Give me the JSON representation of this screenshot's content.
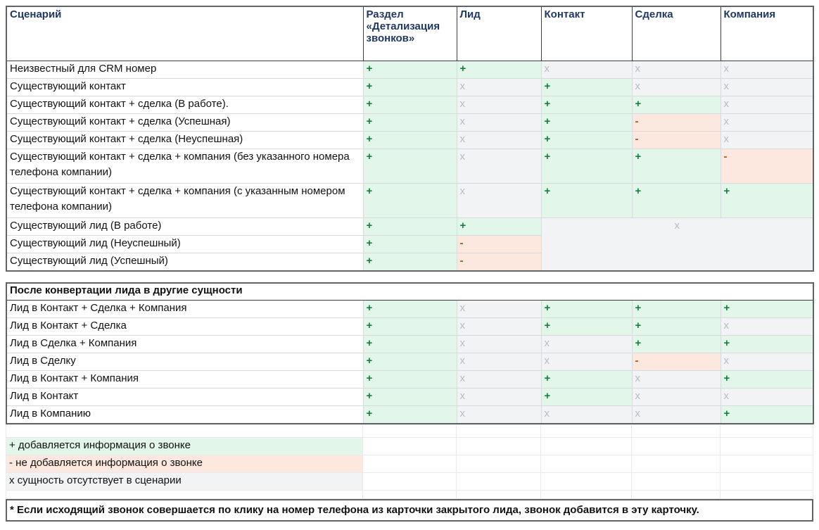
{
  "colors": {
    "green_bg": "#e2f6e9",
    "green_text": "#157f3c",
    "red_bg": "#fce8df",
    "red_text": "#b45309",
    "gray_bg": "#f1f3f4",
    "gray_text": "#b5bcc4",
    "header_text": "#1f3864",
    "grid_light": "#d7dadd",
    "grid_faint": "#e8eaed",
    "border_dark": "#5f6368"
  },
  "table1": {
    "columns": [
      "Сценарий",
      "Раздел «Детализация звонков»",
      "Лид",
      "Контакт",
      "Сделка",
      "Компания"
    ],
    "rows": [
      {
        "label": "Неизвестный для CRM номер",
        "cells": [
          "+",
          "+",
          "x",
          "x",
          "x"
        ]
      },
      {
        "label": "Существующий контакт",
        "cells": [
          "+",
          "x",
          "+",
          "x",
          "x"
        ]
      },
      {
        "label": "Существующий контакт + сделка (В работе).",
        "cells": [
          "+",
          "x",
          "+",
          "+",
          "x"
        ]
      },
      {
        "label": "Существующий контакт + сделка (Успешная)",
        "cells": [
          "+",
          "x",
          "+",
          "-",
          "x"
        ]
      },
      {
        "label": "Существующий контакт + сделка (Неуспешная)",
        "cells": [
          "+",
          "x",
          "+",
          "-",
          "x"
        ]
      },
      {
        "label": "Существующий контакт + сделка + компания (без указанного номера телефона компании)",
        "cells": [
          "+",
          "x",
          "+",
          "+",
          "-"
        ],
        "tall": true
      },
      {
        "label": "Существующий контакт + сделка + компания (с указанным номером телефона компании)",
        "cells": [
          "+",
          "x",
          "+",
          "+",
          "+"
        ],
        "tall": true
      },
      {
        "label": "Существующий лид (В работе)",
        "cells": [
          "+",
          "+"
        ],
        "merged_start": true
      },
      {
        "label": "Существующий лид (Неуспешный)",
        "cells": [
          "+",
          "-"
        ]
      },
      {
        "label": "Существующий лид (Успешный)",
        "cells": [
          "+",
          "-"
        ]
      }
    ],
    "merged_cell": {
      "symbol": "x",
      "rows": 3,
      "cols": 3
    }
  },
  "table2": {
    "section_title": "После конвертации лида в другие сущности",
    "rows": [
      {
        "label": "Лид в Контакт + Сделка + Компания",
        "cells": [
          "+",
          "x",
          "+",
          "+",
          "+"
        ]
      },
      {
        "label": "Лид в Контакт + Сделка",
        "cells": [
          "+",
          "x",
          "+",
          "+",
          "x"
        ]
      },
      {
        "label": "Лид в Сделка + Компания",
        "cells": [
          "+",
          "x",
          "x",
          "+",
          "+"
        ]
      },
      {
        "label": "Лид в Сделку",
        "cells": [
          "+",
          "x",
          "x",
          "-",
          "x"
        ]
      },
      {
        "label": "Лид в Контакт + Компания",
        "cells": [
          "+",
          "x",
          "+",
          "x",
          "+"
        ]
      },
      {
        "label": "Лид в Контакт",
        "cells": [
          "+",
          "x",
          "+",
          "x",
          "x"
        ]
      },
      {
        "label": "Лид в Компанию",
        "cells": [
          "+",
          "x",
          "x",
          "x",
          "+"
        ]
      }
    ]
  },
  "legend": {
    "items": [
      {
        "text": "+ добавляется информация о звонке",
        "type": "plus"
      },
      {
        "text": "- не добавляется информация о звонке",
        "type": "minus"
      },
      {
        "text": "x сущность отсутствует в сценарии",
        "type": "x"
      }
    ]
  },
  "footnote": "* Если исходящий звонок совершается по клику на номер телефона из карточки закрытого лида, звонок добавится в эту карточку."
}
